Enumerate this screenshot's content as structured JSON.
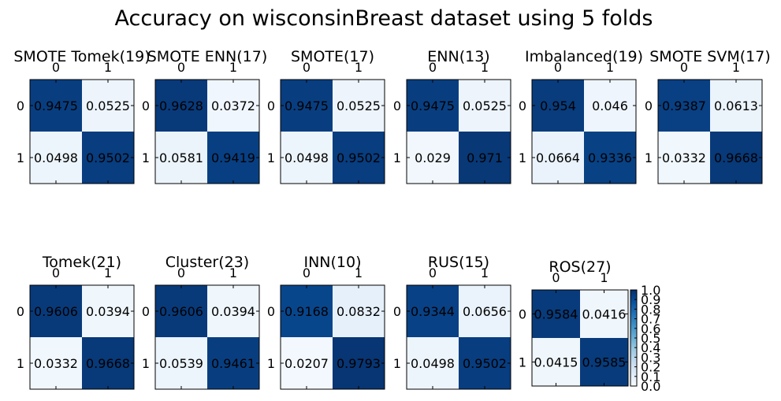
{
  "figure": {
    "title": "Accuracy on wisconsinBreast dataset using 5 folds"
  },
  "colorbar": {
    "colormap": "Blues",
    "ticks": [
      "0.0",
      "0.1",
      "0.2",
      "0.3",
      "0.4",
      "0.5",
      "0.6",
      "0.7",
      "0.8",
      "0.9",
      "1.0"
    ]
  },
  "chart_data": [
    {
      "type": "heatmap",
      "title": "SMOTE Tomek(19)",
      "x_labels": [
        "0",
        "1"
      ],
      "y_labels": [
        "0",
        "1"
      ],
      "values": [
        [
          0.9475,
          0.0525
        ],
        [
          0.0498,
          0.9502
        ]
      ]
    },
    {
      "type": "heatmap",
      "title": "SMOTE ENN(17)",
      "x_labels": [
        "0",
        "1"
      ],
      "y_labels": [
        "0",
        "1"
      ],
      "values": [
        [
          0.9628,
          0.0372
        ],
        [
          0.0581,
          0.9419
        ]
      ]
    },
    {
      "type": "heatmap",
      "title": "SMOTE(17)",
      "x_labels": [
        "0",
        "1"
      ],
      "y_labels": [
        "0",
        "1"
      ],
      "values": [
        [
          0.9475,
          0.0525
        ],
        [
          0.0498,
          0.9502
        ]
      ]
    },
    {
      "type": "heatmap",
      "title": "ENN(13)",
      "x_labels": [
        "0",
        "1"
      ],
      "y_labels": [
        "0",
        "1"
      ],
      "values": [
        [
          0.9475,
          0.0525
        ],
        [
          0.029,
          0.971
        ]
      ]
    },
    {
      "type": "heatmap",
      "title": "Imbalanced(19)",
      "x_labels": [
        "0",
        "1"
      ],
      "y_labels": [
        "0",
        "1"
      ],
      "values": [
        [
          0.954,
          0.046
        ],
        [
          0.0664,
          0.9336
        ]
      ]
    },
    {
      "type": "heatmap",
      "title": "SMOTE SVM(17)",
      "x_labels": [
        "0",
        "1"
      ],
      "y_labels": [
        "0",
        "1"
      ],
      "values": [
        [
          0.9387,
          0.0613
        ],
        [
          0.0332,
          0.9668
        ]
      ]
    },
    {
      "type": "heatmap",
      "title": "Tomek(21)",
      "x_labels": [
        "0",
        "1"
      ],
      "y_labels": [
        "0",
        "1"
      ],
      "values": [
        [
          0.9606,
          0.0394
        ],
        [
          0.0332,
          0.9668
        ]
      ]
    },
    {
      "type": "heatmap",
      "title": "Cluster(23)",
      "x_labels": [
        "0",
        "1"
      ],
      "y_labels": [
        "0",
        "1"
      ],
      "values": [
        [
          0.9606,
          0.0394
        ],
        [
          0.0539,
          0.9461
        ]
      ]
    },
    {
      "type": "heatmap",
      "title": "INN(10)",
      "x_labels": [
        "0",
        "1"
      ],
      "y_labels": [
        "0",
        "1"
      ],
      "values": [
        [
          0.9168,
          0.0832
        ],
        [
          0.0207,
          0.9793
        ]
      ]
    },
    {
      "type": "heatmap",
      "title": "RUS(15)",
      "x_labels": [
        "0",
        "1"
      ],
      "y_labels": [
        "0",
        "1"
      ],
      "values": [
        [
          0.9344,
          0.0656
        ],
        [
          0.0498,
          0.9502
        ]
      ]
    },
    {
      "type": "heatmap",
      "title": "ROS(27)",
      "x_labels": [
        "0",
        "1"
      ],
      "y_labels": [
        "0",
        "1"
      ],
      "values": [
        [
          0.9584,
          0.0416
        ],
        [
          0.0415,
          0.9585
        ]
      ],
      "colorbar": true
    }
  ]
}
